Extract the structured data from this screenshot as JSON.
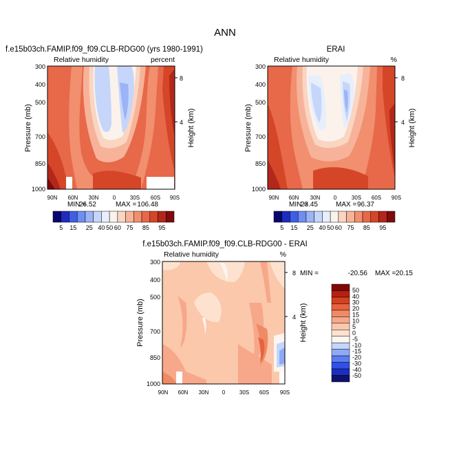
{
  "figure": {
    "main_title": "ANN"
  },
  "colors": {
    "abs_scale": [
      "#08066e",
      "#1f2bbf",
      "#3f5ee6",
      "#6e8ef2",
      "#9cb4f6",
      "#c5d6fa",
      "#e7eefc",
      "#fbf2ec",
      "#fad5c2",
      "#f7b399",
      "#f18f6e",
      "#e8684a",
      "#d54628",
      "#b3271a",
      "#7d0b0b"
    ],
    "diff_scale": [
      "#10106e",
      "#1a2fc0",
      "#3050e8",
      "#5a7ef2",
      "#8eaaf6",
      "#c3d6fb",
      "#fdf5ef",
      "#fde2d0",
      "#fbc8ac",
      "#f7a88a",
      "#f08a64",
      "#e8633f",
      "#d64020",
      "#b81f10",
      "#820808"
    ]
  },
  "chart_data": [
    {
      "type": "heatmap",
      "name": "model",
      "title_left": "f.e15b03ch.FAMIP.f09_f09.CLB-RDG00 (yrs 1980-1991)",
      "subtitle_left": "Relative humidity",
      "subtitle_right": "percent",
      "xlabel": "",
      "ylabel": "Pressure (mb)",
      "y2label": "Height (km)",
      "xticks": [
        "90N",
        "60N",
        "30N",
        "0",
        "30S",
        "60S",
        "90S"
      ],
      "yticks": [
        "300",
        "400",
        "500",
        "700",
        "850",
        "1000"
      ],
      "y2ticks": [
        "8",
        "4"
      ],
      "stats": {
        "min_label": "MIN =",
        "min": "26.52",
        "max_label": "MAX =",
        "max": "106.48"
      },
      "colorbar": {
        "labels": [
          "5",
          "15",
          "25",
          "40",
          "50",
          "60",
          "75",
          "85",
          "95"
        ]
      }
    },
    {
      "type": "heatmap",
      "name": "obs",
      "title_right": "ERAI",
      "subtitle_left": "Relative humidity",
      "subtitle_right": "%",
      "ylabel": "Pressure (mb)",
      "y2label": "Height (km)",
      "xticks": [
        "90N",
        "60N",
        "30N",
        "0",
        "30S",
        "60S",
        "90S"
      ],
      "yticks": [
        "300",
        "400",
        "500",
        "700",
        "850",
        "1000"
      ],
      "y2ticks": [
        "8",
        "4"
      ],
      "stats": {
        "min_label": "MIN =",
        "min": "23.45",
        "max_label": "MAX =",
        "max": "96.37"
      },
      "colorbar": {
        "labels": [
          "5",
          "15",
          "25",
          "40",
          "50",
          "60",
          "75",
          "85",
          "95"
        ]
      }
    },
    {
      "type": "heatmap",
      "name": "diff",
      "title": "f.e15b03ch.FAMIP.f09_f09.CLB-RDG00 - ERAI",
      "subtitle_left": "Relative humidity",
      "subtitle_right": "%",
      "ylabel": "Pressure (mb)",
      "y2label": "Height (km)",
      "xticks": [
        "90N",
        "60N",
        "30N",
        "0",
        "30S",
        "60S",
        "90S"
      ],
      "yticks": [
        "300",
        "400",
        "500",
        "700",
        "850",
        "1000"
      ],
      "y2ticks": [
        "8",
        "4"
      ],
      "stats": {
        "min_label": "MIN =",
        "min": "-20.56",
        "max_label": "MAX =",
        "max": "20.15"
      },
      "colorbar": {
        "labels": [
          "50",
          "40",
          "30",
          "20",
          "15",
          "10",
          "5",
          "0",
          "-5",
          "-10",
          "-15",
          "-20",
          "-30",
          "-40",
          "-50"
        ]
      }
    }
  ]
}
